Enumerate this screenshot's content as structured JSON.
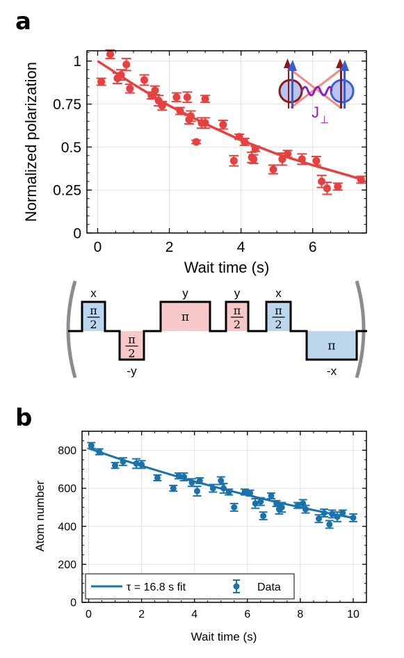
{
  "panels": {
    "a": {
      "letter": "a"
    },
    "b": {
      "letter": "b"
    }
  },
  "pulse_sequence": {
    "pulses": [
      {
        "axis": "x",
        "angle_num": "π",
        "angle_den": "2",
        "sign": "+",
        "color": "#bcd6ee"
      },
      {
        "axis": "-y",
        "angle_num": "π",
        "angle_den": "2",
        "sign": "-",
        "color": "#f6c8c8"
      },
      {
        "axis": "y",
        "angle_num": "π",
        "angle_den": "",
        "sign": "+",
        "color": "#f6c8c8"
      },
      {
        "axis": "y",
        "angle_num": "π",
        "angle_den": "2",
        "sign": "+",
        "color": "#f6c8c8"
      },
      {
        "axis": "x",
        "angle_num": "π",
        "angle_den": "2",
        "sign": "+",
        "color": "#bcd6ee"
      },
      {
        "axis": "-x",
        "angle_num": "π",
        "angle_den": "",
        "sign": "-",
        "color": "#bcd6ee"
      }
    ]
  },
  "inset": {
    "coupling_label": "J",
    "coupling_sub": "⊥"
  },
  "chart_data": [
    {
      "type": "scatter",
      "xlabel": "Wait time (s)",
      "ylabel": "Normalized polarization",
      "xlim": [
        -0.3,
        7.5
      ],
      "ylim": [
        0,
        1.06
      ],
      "xticks": [
        0,
        2,
        4,
        6
      ],
      "yticks": [
        0,
        0.25,
        0.5,
        0.75,
        1
      ],
      "ytick_labels": [
        "0",
        "0.25",
        "0.5",
        "0.75",
        "1"
      ],
      "grid": true,
      "color": "#e8403e",
      "points": [
        [
          0.1,
          0.88,
          0.02
        ],
        [
          0.35,
          1.04,
          0.025
        ],
        [
          0.55,
          0.9,
          0.03
        ],
        [
          0.65,
          0.92,
          0.03
        ],
        [
          0.8,
          0.98,
          0.035
        ],
        [
          0.9,
          0.84,
          0.025
        ],
        [
          1.3,
          0.89,
          0.03
        ],
        [
          1.5,
          0.8,
          0.02
        ],
        [
          1.6,
          0.83,
          0.025
        ],
        [
          1.7,
          0.77,
          0.03
        ],
        [
          1.8,
          0.74,
          0.025
        ],
        [
          2.2,
          0.79,
          0.025
        ],
        [
          2.3,
          0.71,
          0.02
        ],
        [
          2.5,
          0.79,
          0.03
        ],
        [
          2.55,
          0.66,
          0.025
        ],
        [
          2.6,
          0.68,
          0.03
        ],
        [
          2.75,
          0.53,
          0.01
        ],
        [
          2.9,
          0.64,
          0.03
        ],
        [
          3.0,
          0.78,
          0.02
        ],
        [
          3.0,
          0.64,
          0.03
        ],
        [
          3.5,
          0.63,
          0.025
        ],
        [
          3.8,
          0.42,
          0.03
        ],
        [
          3.95,
          0.56,
          0.015
        ],
        [
          4.1,
          0.53,
          0.02
        ],
        [
          4.3,
          0.44,
          0.03
        ],
        [
          4.35,
          0.43,
          0.025
        ],
        [
          4.4,
          0.49,
          0.015
        ],
        [
          4.9,
          0.37,
          0.025
        ],
        [
          5.15,
          0.43,
          0.035
        ],
        [
          5.3,
          0.46,
          0.02
        ],
        [
          5.7,
          0.43,
          0.03
        ],
        [
          6.1,
          0.42,
          0.025
        ],
        [
          6.25,
          0.3,
          0.035
        ],
        [
          6.4,
          0.26,
          0.035
        ],
        [
          6.7,
          0.27,
          0.02
        ],
        [
          7.35,
          0.31,
          0.02
        ]
      ],
      "fit": {
        "x": [
          0,
          1,
          2,
          3,
          4,
          5,
          6,
          7,
          7.4
        ],
        "y": [
          1.0,
          0.865,
          0.74,
          0.635,
          0.54,
          0.46,
          0.395,
          0.335,
          0.31
        ]
      }
    },
    {
      "type": "scatter",
      "xlabel": "Wait time (s)",
      "ylabel": "Atom number",
      "xlim": [
        -0.25,
        10.5
      ],
      "ylim": [
        0,
        900
      ],
      "xticks": [
        0,
        2,
        4,
        6,
        8,
        10
      ],
      "yticks": [
        0,
        200,
        400,
        600,
        800
      ],
      "ytick_labels": [
        "0",
        "200",
        "400",
        "600",
        "800"
      ],
      "grid": true,
      "color": "#1a72ac",
      "points": [
        [
          0.1,
          825,
          15
        ],
        [
          0.4,
          792,
          15
        ],
        [
          1.0,
          720,
          15
        ],
        [
          1.3,
          740,
          20
        ],
        [
          1.8,
          730,
          25
        ],
        [
          2.0,
          725,
          20
        ],
        [
          2.6,
          655,
          15
        ],
        [
          3.2,
          600,
          15
        ],
        [
          3.4,
          665,
          15
        ],
        [
          3.6,
          660,
          20
        ],
        [
          3.9,
          630,
          20
        ],
        [
          4.1,
          585,
          25
        ],
        [
          4.2,
          640,
          15
        ],
        [
          4.7,
          600,
          20
        ],
        [
          5.0,
          640,
          20
        ],
        [
          5.1,
          600,
          25
        ],
        [
          5.3,
          580,
          15
        ],
        [
          5.5,
          500,
          20
        ],
        [
          5.9,
          580,
          15
        ],
        [
          6.1,
          575,
          15
        ],
        [
          6.3,
          520,
          25
        ],
        [
          6.5,
          530,
          20
        ],
        [
          6.6,
          455,
          20
        ],
        [
          6.9,
          560,
          15
        ],
        [
          7.1,
          520,
          15
        ],
        [
          7.2,
          490,
          25
        ],
        [
          7.3,
          500,
          25
        ],
        [
          7.9,
          510,
          15
        ],
        [
          8.1,
          520,
          20
        ],
        [
          8.2,
          490,
          20
        ],
        [
          8.7,
          440,
          20
        ],
        [
          8.9,
          470,
          20
        ],
        [
          9.1,
          410,
          20
        ],
        [
          9.2,
          465,
          20
        ],
        [
          9.4,
          450,
          25
        ],
        [
          9.6,
          470,
          15
        ],
        [
          10.0,
          445,
          20
        ]
      ],
      "fit": {
        "x": [
          0,
          1,
          2,
          3,
          4,
          5,
          6,
          7,
          8,
          9,
          10
        ],
        "y": [
          810,
          762,
          718,
          676,
          636,
          599,
          564,
          531,
          500,
          471,
          444
        ]
      },
      "legend": {
        "placement": "bottom-left",
        "fit_label": "τ = 16.8 s fit",
        "data_label": "Data"
      }
    }
  ]
}
